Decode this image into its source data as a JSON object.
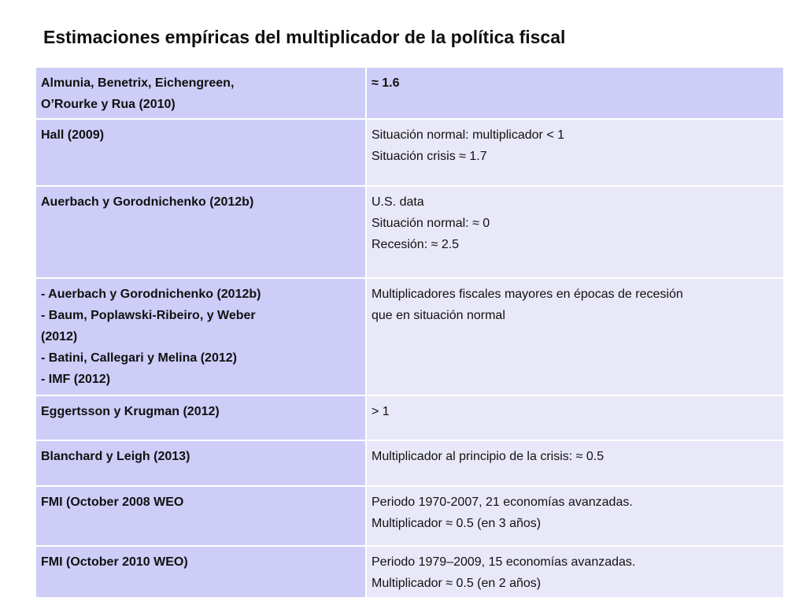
{
  "slide": {
    "title": "Estimaciones empíricas del multiplicador de la política fiscal"
  },
  "table": {
    "rows": [
      {
        "author": [
          "Almunia, Benetrix, Eichengreen,",
          "O’Rourke y Rua (2010)"
        ],
        "result": [
          "≈ 1.6"
        ]
      },
      {
        "author": [
          "Hall (2009)"
        ],
        "result": [
          "Situación normal: multiplicador < 1",
          "Situación crisis ≈ 1.7"
        ]
      },
      {
        "author": [
          "Auerbach y Gorodnichenko (2012b)"
        ],
        "result": [
          "U.S. data",
          "Situación normal: ≈ 0",
          "Recesión: ≈ 2.5"
        ]
      },
      {
        "author": [
          "- Auerbach  y Gorodnichenko (2012b)",
          "- Baum, Poplawski-Ribeiro, y Weber",
          "(2012)",
          "- Batini, Callegari  y  Melina (2012)",
          "- IMF (2012)"
        ],
        "result": [
          "Multiplicadores fiscales mayores en épocas de recesión",
          "que en  situación normal"
        ]
      },
      {
        "author": [
          "Eggertsson y Krugman (2012)"
        ],
        "result": [
          "> 1"
        ]
      },
      {
        "author": [
          "Blanchard y Leigh (2013)"
        ],
        "result": [
          "Multiplicador al principio de la crisis: ≈ 0.5"
        ]
      },
      {
        "author": [
          "FMI (October 2008 WEO"
        ],
        "result": [
          "Periodo 1970-2007, 21 economías avanzadas.",
          "Multiplicador ≈ 0.5 (en 3 años)"
        ]
      },
      {
        "author": [
          "FMI (October 2010 WEO)"
        ],
        "result": [
          "Periodo 1979–2009, 15 economías avanzadas.",
          "Multiplicador ≈ 0.5 (en 2 años)"
        ]
      }
    ]
  }
}
